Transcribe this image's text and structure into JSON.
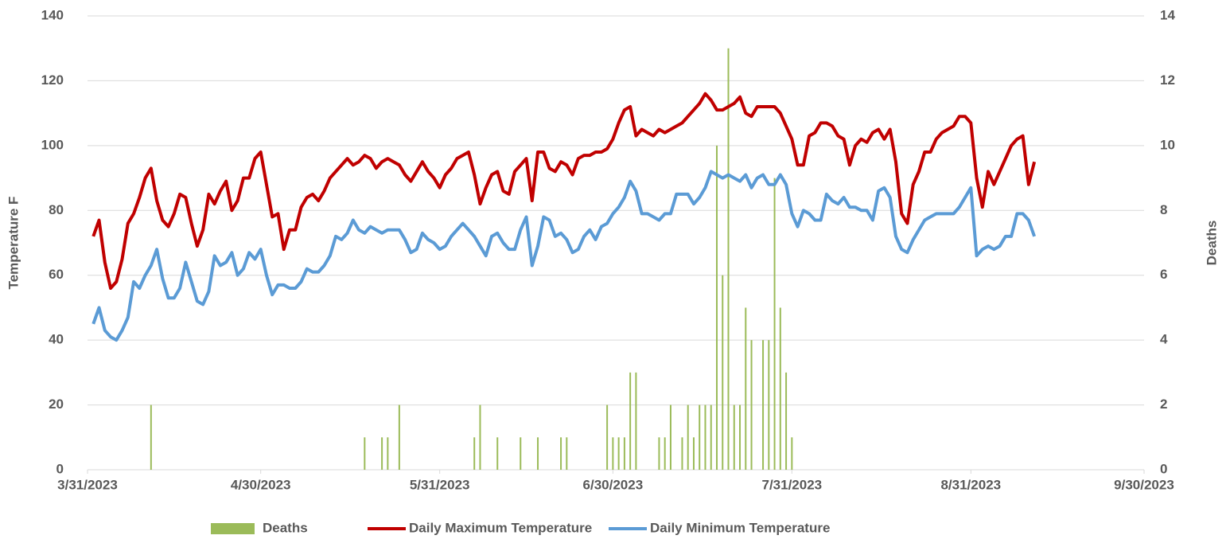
{
  "chart_data": {
    "type": "line",
    "y_label": "Temperature F",
    "y2_label": "Deaths",
    "x": [
      "4/1/2023",
      "4/2/2023",
      "4/3/2023",
      "4/4/2023",
      "4/5/2023",
      "4/6/2023",
      "4/7/2023",
      "4/8/2023",
      "4/9/2023",
      "4/10/2023",
      "4/11/2023",
      "4/12/2023",
      "4/13/2023",
      "4/14/2023",
      "4/15/2023",
      "4/16/2023",
      "4/17/2023",
      "4/18/2023",
      "4/19/2023",
      "4/20/2023",
      "4/21/2023",
      "4/22/2023",
      "4/23/2023",
      "4/24/2023",
      "4/25/2023",
      "4/26/2023",
      "4/27/2023",
      "4/28/2023",
      "4/29/2023",
      "4/30/2023",
      "5/1/2023",
      "5/2/2023",
      "5/3/2023",
      "5/4/2023",
      "5/5/2023",
      "5/6/2023",
      "5/7/2023",
      "5/8/2023",
      "5/9/2023",
      "5/10/2023",
      "5/11/2023",
      "5/12/2023",
      "5/13/2023",
      "5/14/2023",
      "5/15/2023",
      "5/16/2023",
      "5/17/2023",
      "5/18/2023",
      "5/19/2023",
      "5/20/2023",
      "5/21/2023",
      "5/22/2023",
      "5/23/2023",
      "5/24/2023",
      "5/25/2023",
      "5/26/2023",
      "5/27/2023",
      "5/28/2023",
      "5/29/2023",
      "5/30/2023",
      "5/31/2023",
      "6/1/2023",
      "6/2/2023",
      "6/3/2023",
      "6/4/2023",
      "6/5/2023",
      "6/6/2023",
      "6/7/2023",
      "6/8/2023",
      "6/9/2023",
      "6/10/2023",
      "6/11/2023",
      "6/12/2023",
      "6/13/2023",
      "6/14/2023",
      "6/15/2023",
      "6/16/2023",
      "6/17/2023",
      "6/18/2023",
      "6/19/2023",
      "6/20/2023",
      "6/21/2023",
      "6/22/2023",
      "6/23/2023",
      "6/24/2023",
      "6/25/2023",
      "6/26/2023",
      "6/27/2023",
      "6/28/2023",
      "6/29/2023",
      "6/30/2023",
      "7/1/2023",
      "7/2/2023",
      "7/3/2023",
      "7/4/2023",
      "7/5/2023",
      "7/6/2023",
      "7/7/2023",
      "7/8/2023",
      "7/9/2023",
      "7/10/2023",
      "7/11/2023",
      "7/12/2023",
      "7/13/2023",
      "7/14/2023",
      "7/15/2023",
      "7/16/2023",
      "7/17/2023",
      "7/18/2023",
      "7/19/2023",
      "7/20/2023",
      "7/21/2023",
      "7/22/2023",
      "7/23/2023",
      "7/24/2023",
      "7/25/2023",
      "7/26/2023",
      "7/27/2023",
      "7/28/2023",
      "7/29/2023",
      "7/30/2023",
      "7/31/2023",
      "8/1/2023",
      "8/2/2023",
      "8/3/2023",
      "8/4/2023",
      "8/5/2023",
      "8/6/2023",
      "8/7/2023",
      "8/8/2023",
      "8/9/2023",
      "8/10/2023",
      "8/11/2023",
      "8/12/2023",
      "8/13/2023",
      "8/14/2023",
      "8/15/2023",
      "8/16/2023",
      "8/17/2023",
      "8/18/2023",
      "8/19/2023",
      "8/20/2023",
      "8/21/2023",
      "8/22/2023",
      "8/23/2023",
      "8/24/2023",
      "8/25/2023",
      "8/26/2023",
      "8/27/2023",
      "8/28/2023",
      "8/29/2023",
      "8/30/2023",
      "8/31/2023",
      "9/1/2023",
      "9/2/2023",
      "9/3/2023",
      "9/4/2023",
      "9/5/2023",
      "9/6/2023",
      "9/7/2023",
      "9/8/2023",
      "9/9/2023",
      "9/10/2023",
      "9/11/2023"
    ],
    "series": [
      {
        "name": "Deaths",
        "type": "bar",
        "axis": "y2",
        "color": "#9bbb59",
        "values": [
          0,
          0,
          0,
          0,
          0,
          0,
          0,
          0,
          0,
          0,
          2,
          0,
          0,
          0,
          0,
          0,
          0,
          0,
          0,
          0,
          0,
          0,
          0,
          0,
          0,
          0,
          0,
          0,
          0,
          0,
          0,
          0,
          0,
          0,
          0,
          0,
          0,
          0,
          0,
          0,
          0,
          0,
          0,
          0,
          0,
          0,
          0,
          1,
          0,
          0,
          1,
          1,
          0,
          2,
          0,
          0,
          0,
          0,
          0,
          0,
          0,
          0,
          0,
          0,
          0,
          0,
          1,
          2,
          0,
          0,
          1,
          0,
          0,
          0,
          1,
          0,
          0,
          1,
          0,
          0,
          0,
          1,
          1,
          0,
          0,
          0,
          0,
          0,
          0,
          2,
          1,
          1,
          1,
          3,
          3,
          0,
          0,
          0,
          1,
          1,
          2,
          0,
          1,
          2,
          1,
          2,
          2,
          2,
          10,
          6,
          13,
          2,
          2,
          5,
          4,
          0,
          4,
          4,
          9,
          5,
          3,
          1,
          0,
          0,
          0,
          0,
          0,
          0,
          0,
          0,
          0,
          0,
          0,
          0,
          0,
          0,
          0,
          0,
          0,
          0,
          0,
          0,
          0,
          0,
          0,
          0,
          0,
          0,
          0,
          0,
          0,
          0,
          0,
          0,
          0,
          0,
          0,
          0,
          0,
          0,
          0,
          0,
          0,
          0
        ]
      },
      {
        "name": "Daily Maximum Temperature",
        "type": "line",
        "color": "#c00000",
        "values": [
          72,
          77,
          64,
          56,
          58,
          65,
          76,
          79,
          84,
          90,
          93,
          83,
          77,
          75,
          79,
          85,
          84,
          76,
          69,
          74,
          85,
          82,
          86,
          89,
          80,
          83,
          90,
          90,
          96,
          98,
          88,
          78,
          79,
          68,
          74,
          74,
          81,
          84,
          85,
          83,
          86,
          90,
          92,
          94,
          96,
          94,
          95,
          97,
          96,
          93,
          95,
          96,
          95,
          94,
          91,
          89,
          92,
          95,
          92,
          90,
          87,
          91,
          93,
          96,
          97,
          98,
          91,
          82,
          87,
          91,
          92,
          86,
          85,
          92,
          94,
          96,
          83,
          98,
          98,
          93,
          92,
          95,
          94,
          91,
          96,
          97,
          97,
          98,
          98,
          99,
          102,
          107,
          111,
          112,
          103,
          105,
          104,
          103,
          105,
          104,
          105,
          106,
          107,
          109,
          111,
          113,
          116,
          114,
          111,
          111,
          112,
          113,
          115,
          110,
          109,
          112,
          112,
          112,
          112,
          110,
          106,
          102,
          94,
          94,
          103,
          104,
          107,
          107,
          106,
          103,
          102,
          94,
          100,
          102,
          101,
          104,
          105,
          102,
          105,
          95,
          79,
          76,
          88,
          92,
          98,
          98,
          102,
          104,
          105,
          106,
          109,
          109,
          107,
          90,
          81,
          92,
          88,
          92,
          96,
          100,
          102,
          103,
          88,
          95
        ]
      },
      {
        "name": "Daily Minimum Temperature",
        "type": "line",
        "color": "#5b9bd5",
        "values": [
          45,
          50,
          43,
          41,
          40,
          43,
          47,
          58,
          56,
          60,
          63,
          68,
          59,
          53,
          53,
          56,
          64,
          58,
          52,
          51,
          55,
          66,
          63,
          64,
          67,
          60,
          62,
          67,
          65,
          68,
          60,
          54,
          57,
          57,
          56,
          56,
          58,
          62,
          61,
          61,
          63,
          66,
          72,
          71,
          73,
          77,
          74,
          73,
          75,
          74,
          73,
          74,
          74,
          74,
          71,
          67,
          68,
          73,
          71,
          70,
          68,
          69,
          72,
          74,
          76,
          74,
          72,
          69,
          66,
          72,
          73,
          70,
          68,
          68,
          74,
          78,
          63,
          69,
          78,
          77,
          72,
          73,
          71,
          67,
          68,
          72,
          74,
          71,
          75,
          76,
          79,
          81,
          84,
          89,
          86,
          79,
          79,
          78,
          77,
          79,
          79,
          85,
          85,
          85,
          82,
          84,
          87,
          92,
          91,
          90,
          91,
          90,
          89,
          91,
          87,
          90,
          91,
          88,
          88,
          91,
          88,
          79,
          75,
          80,
          79,
          77,
          77,
          85,
          83,
          82,
          84,
          81,
          81,
          80,
          80,
          77,
          86,
          87,
          84,
          72,
          68,
          67,
          71,
          74,
          77,
          78,
          79,
          79,
          79,
          79,
          81,
          84,
          87,
          66,
          68,
          69,
          68,
          69,
          72,
          72,
          79,
          79,
          77,
          72
        ]
      }
    ],
    "xlim": [
      "3/31/2023",
      "9/30/2023"
    ],
    "xticks": [
      "3/31/2023",
      "4/30/2023",
      "5/31/2023",
      "6/30/2023",
      "7/31/2023",
      "8/31/2023",
      "9/30/2023"
    ],
    "ylim": [
      0,
      140
    ],
    "yticks": [
      0,
      20,
      40,
      60,
      80,
      100,
      120,
      140
    ],
    "y2lim": [
      0,
      14
    ],
    "y2ticks": [
      0,
      2,
      4,
      6,
      8,
      10,
      12,
      14
    ],
    "grid": true,
    "legend": "bottom"
  }
}
